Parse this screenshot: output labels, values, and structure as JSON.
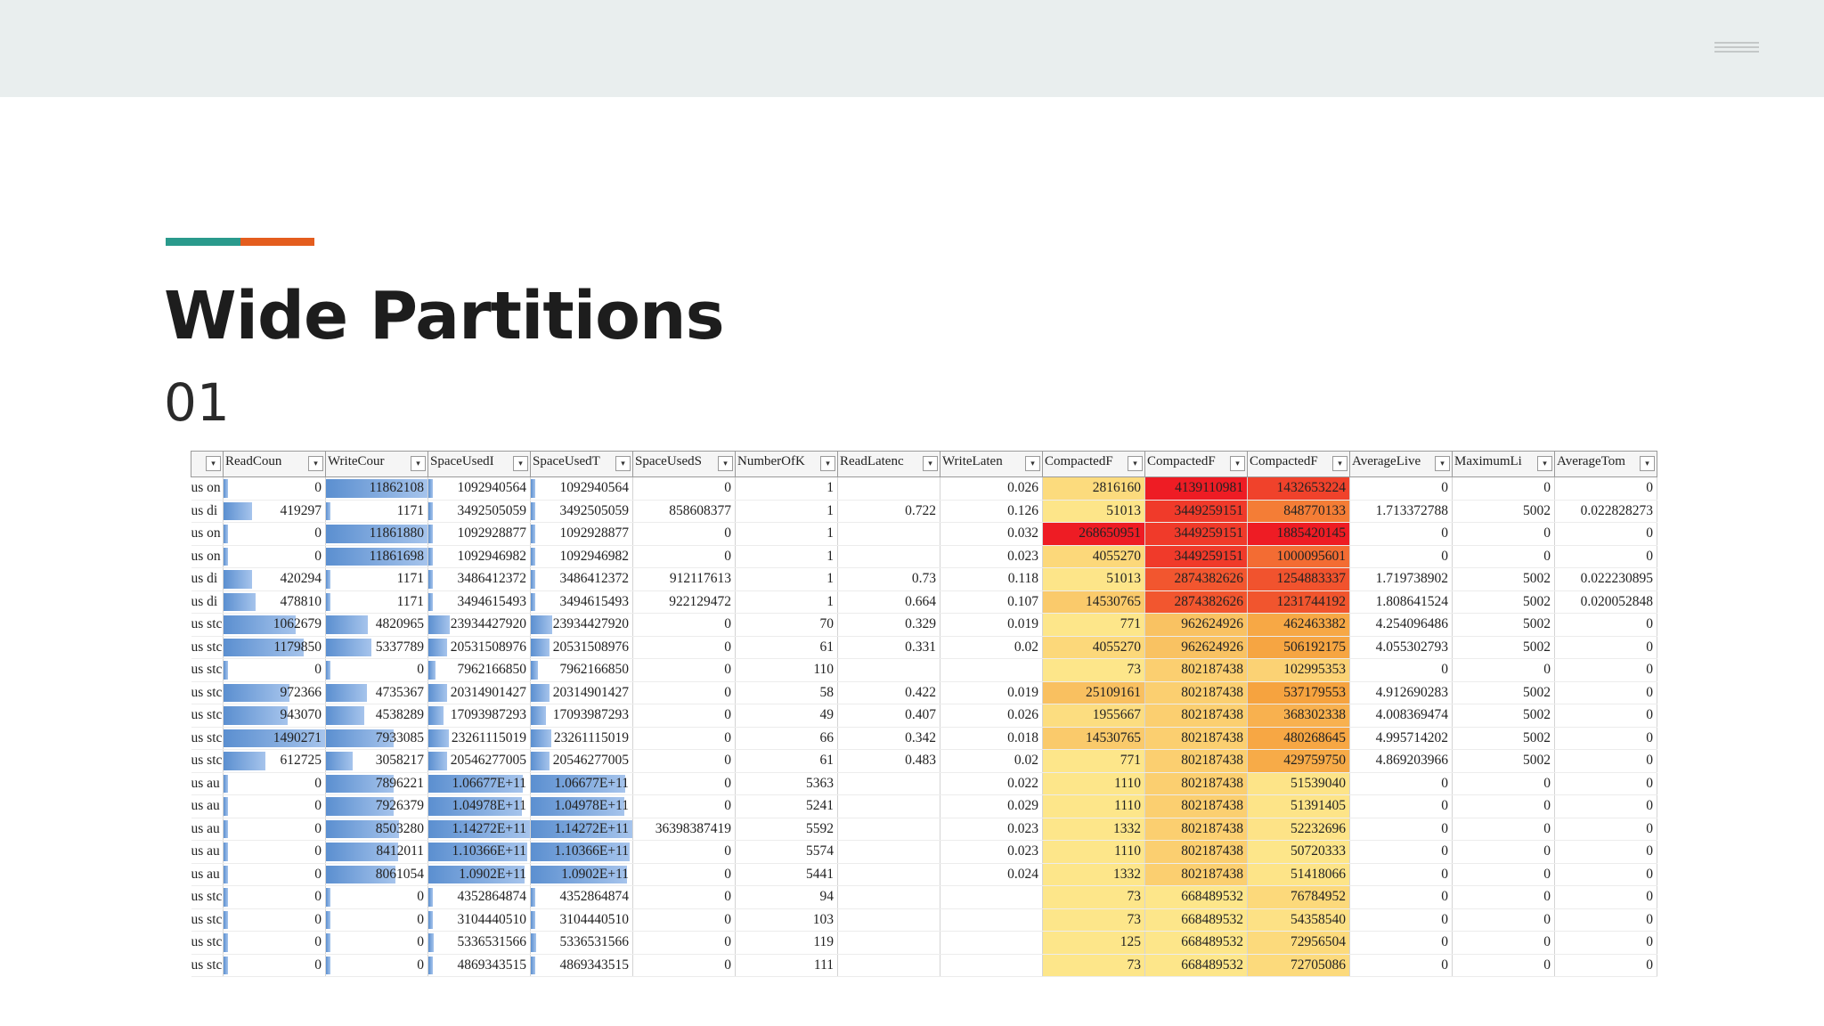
{
  "slide": {
    "title": "Wide Partitions",
    "subtitle": "01"
  },
  "colors": {
    "accent_teal": "#2a9a8c",
    "accent_orange": "#e45d1e",
    "topbar": "#e9eeee",
    "heat_low": "#fde68a",
    "heat_mid": "#f59e0b",
    "heat_high": "#ee1c24",
    "bar": "#5b8fd0"
  },
  "menu": {
    "icon": "hamburger-icon"
  },
  "table": {
    "headers": [
      "",
      "ReadCoun",
      "WriteCour",
      "SpaceUsedI",
      "SpaceUsedT",
      "SpaceUsedS",
      "NumberOfK",
      "ReadLatenc",
      "WriteLaten",
      "CompactedF",
      "CompactedF",
      "CompactedF",
      "AverageLive",
      "MaximumLi",
      "AverageTom"
    ],
    "rows": [
      [
        "us on",
        "0",
        "11862108",
        "1092940564",
        "1092940564",
        "0",
        "1",
        "",
        "0.026",
        "2816160",
        "4139110981",
        "1432653224",
        "0",
        "0",
        "0"
      ],
      [
        "us di",
        "419297",
        "1171",
        "3492505059",
        "3492505059",
        "858608377",
        "1",
        "0.722",
        "0.126",
        "51013",
        "3449259151",
        "848770133",
        "1.713372788",
        "5002",
        "0.022828273"
      ],
      [
        "us on",
        "0",
        "11861880",
        "1092928877",
        "1092928877",
        "0",
        "1",
        "",
        "0.032",
        "268650951",
        "3449259151",
        "1885420145",
        "0",
        "0",
        "0"
      ],
      [
        "us on",
        "0",
        "11861698",
        "1092946982",
        "1092946982",
        "0",
        "1",
        "",
        "0.023",
        "4055270",
        "3449259151",
        "1000095601",
        "0",
        "0",
        "0"
      ],
      [
        "us di",
        "420294",
        "1171",
        "3486412372",
        "3486412372",
        "912117613",
        "1",
        "0.73",
        "0.118",
        "51013",
        "2874382626",
        "1254883337",
        "1.719738902",
        "5002",
        "0.022230895"
      ],
      [
        "us di",
        "478810",
        "1171",
        "3494615493",
        "3494615493",
        "922129472",
        "1",
        "0.664",
        "0.107",
        "14530765",
        "2874382626",
        "1231744192",
        "1.808641524",
        "5002",
        "0.020052848"
      ],
      [
        "us stc",
        "1062679",
        "4820965",
        "23934427920",
        "23934427920",
        "0",
        "70",
        "0.329",
        "0.019",
        "771",
        "962624926",
        "462463382",
        "4.254096486",
        "5002",
        "0"
      ],
      [
        "us stc",
        "1179850",
        "5337789",
        "20531508976",
        "20531508976",
        "0",
        "61",
        "0.331",
        "0.02",
        "4055270",
        "962624926",
        "506192175",
        "4.055302793",
        "5002",
        "0"
      ],
      [
        "us stc",
        "0",
        "0",
        "7962166850",
        "7962166850",
        "0",
        "110",
        "",
        "",
        "73",
        "802187438",
        "102995353",
        "0",
        "0",
        "0"
      ],
      [
        "us stc",
        "972366",
        "4735367",
        "20314901427",
        "20314901427",
        "0",
        "58",
        "0.422",
        "0.019",
        "25109161",
        "802187438",
        "537179553",
        "4.912690283",
        "5002",
        "0"
      ],
      [
        "us stc",
        "943070",
        "4538289",
        "17093987293",
        "17093987293",
        "0",
        "49",
        "0.407",
        "0.026",
        "1955667",
        "802187438",
        "368302338",
        "4.008369474",
        "5002",
        "0"
      ],
      [
        "us stc",
        "1490271",
        "7933085",
        "23261115019",
        "23261115019",
        "0",
        "66",
        "0.342",
        "0.018",
        "14530765",
        "802187438",
        "480268645",
        "4.995714202",
        "5002",
        "0"
      ],
      [
        "us stc",
        "612725",
        "3058217",
        "20546277005",
        "20546277005",
        "0",
        "61",
        "0.483",
        "0.02",
        "771",
        "802187438",
        "429759750",
        "4.869203966",
        "5002",
        "0"
      ],
      [
        "us au",
        "0",
        "7896221",
        "1.06677E+11",
        "1.06677E+11",
        "0",
        "5363",
        "",
        "0.022",
        "1110",
        "802187438",
        "51539040",
        "0",
        "0",
        "0"
      ],
      [
        "us au",
        "0",
        "7926379",
        "1.04978E+11",
        "1.04978E+11",
        "0",
        "5241",
        "",
        "0.029",
        "1110",
        "802187438",
        "51391405",
        "0",
        "0",
        "0"
      ],
      [
        "us au",
        "0",
        "8503280",
        "1.14272E+11",
        "1.14272E+11",
        "36398387419",
        "5592",
        "",
        "0.023",
        "1332",
        "802187438",
        "52232696",
        "0",
        "0",
        "0"
      ],
      [
        "us au",
        "0",
        "8412011",
        "1.10366E+11",
        "1.10366E+11",
        "0",
        "5574",
        "",
        "0.023",
        "1110",
        "802187438",
        "50720333",
        "0",
        "0",
        "0"
      ],
      [
        "us au",
        "0",
        "8061054",
        "1.0902E+11",
        "1.0902E+11",
        "0",
        "5441",
        "",
        "0.024",
        "1332",
        "802187438",
        "51418066",
        "0",
        "0",
        "0"
      ],
      [
        "us stc",
        "0",
        "0",
        "4352864874",
        "4352864874",
        "0",
        "94",
        "",
        "",
        "73",
        "668489532",
        "76784952",
        "0",
        "0",
        "0"
      ],
      [
        "us stc",
        "0",
        "0",
        "3104440510",
        "3104440510",
        "0",
        "103",
        "",
        "",
        "73",
        "668489532",
        "54358540",
        "0",
        "0",
        "0"
      ],
      [
        "us stc",
        "0",
        "0",
        "5336531566",
        "5336531566",
        "0",
        "119",
        "",
        "",
        "125",
        "668489532",
        "72956504",
        "0",
        "0",
        "0"
      ],
      [
        "us stc",
        "0",
        "0",
        "4869343515",
        "4869343515",
        "0",
        "111",
        "",
        "",
        "73",
        "668489532",
        "72705086",
        "0",
        "0",
        "0"
      ]
    ]
  }
}
